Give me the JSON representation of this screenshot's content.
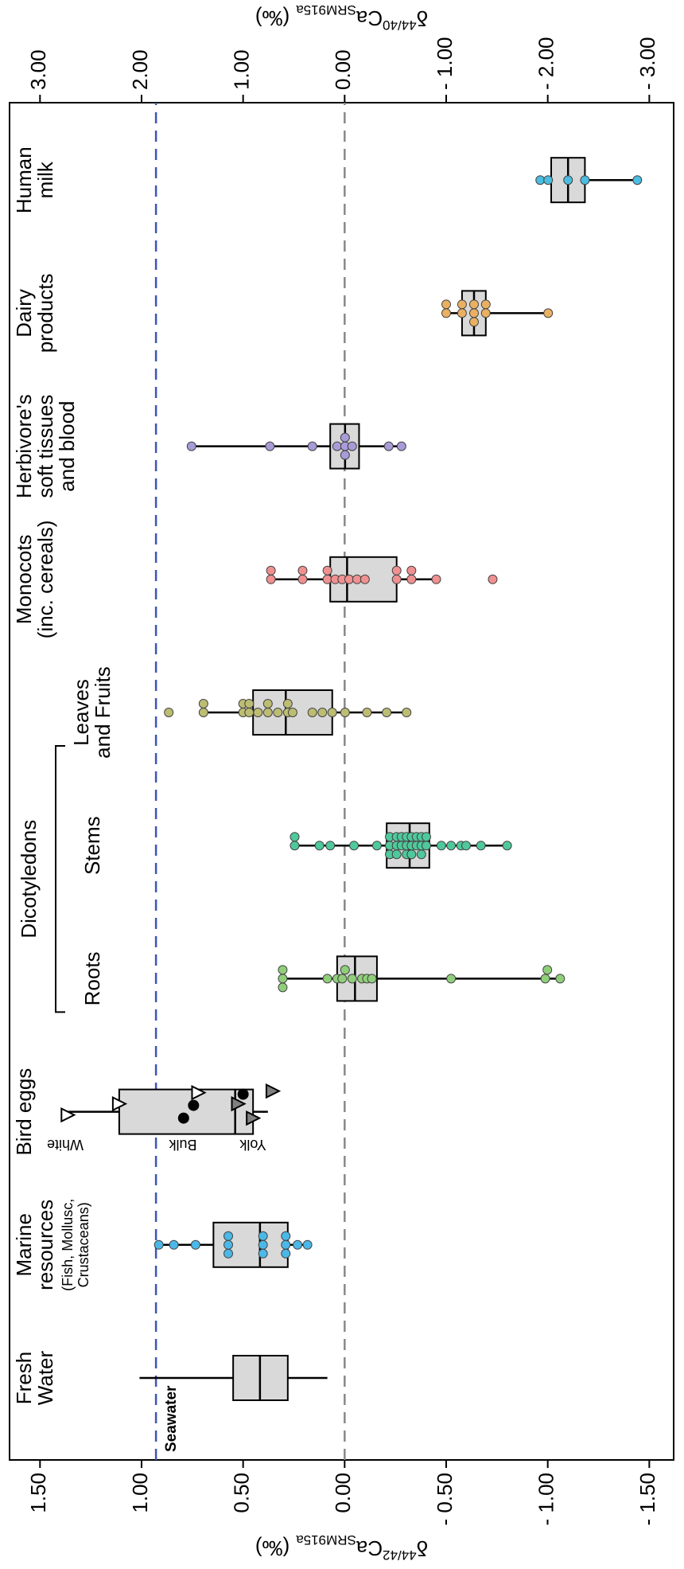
{
  "chart_data": {
    "type": "box",
    "categories": [
      [
        "Fresh",
        "Water"
      ],
      [
        "Marine",
        "resources"
      ],
      [
        "Bird eggs"
      ],
      [
        "Roots"
      ],
      [
        "Stems"
      ],
      [
        "Leaves",
        "and Fruits"
      ],
      [
        "Monocots",
        "(inc. cereals)"
      ],
      [
        "Herbivore's",
        "soft tissues",
        "and blood"
      ],
      [
        "Dairy",
        "products"
      ],
      [
        "Human",
        "milk"
      ]
    ],
    "category_note": [
      "(Fish, Mollusc,",
      "Crustaceans)"
    ],
    "group_label": "Dicotyledons",
    "boxes": [
      {
        "whislo": 0.085,
        "q1": 0.28,
        "median": 0.417,
        "q3": 0.549,
        "whishi": 1.01,
        "points": []
      },
      {
        "whislo": 0.183,
        "q1": 0.28,
        "median": 0.417,
        "q3": 0.646,
        "whishi": 0.915,
        "color": "#4bb8e8",
        "points": [
          0.915,
          0.841,
          0.734,
          0.573,
          0.573,
          0.573,
          0.402,
          0.402,
          0.402,
          0.29,
          0.29,
          0.29,
          0.232,
          0.183
        ]
      },
      {
        "whislo": 0.378,
        "q1": 0.451,
        "median": 0.539,
        "q3": 1.11,
        "whishi": 1.363,
        "points": []
      },
      {
        "whislo": -1.061,
        "q1": -0.159,
        "median": -0.051,
        "q3": 0.037,
        "whishi": 0.305,
        "color": "#8fcf7a",
        "points": [
          0.305,
          0.305,
          0.305,
          0.085,
          0.037,
          0.012,
          -0.002,
          -0.037,
          -0.085,
          -0.11,
          -0.134,
          -0.524,
          -0.988,
          -0.998,
          -1.061
        ]
      },
      {
        "whislo": -0.8,
        "q1": -0.417,
        "median": -0.32,
        "q3": -0.207,
        "whishi": 0.246,
        "color": "#4fc99b",
        "points": [
          0.246,
          0.246,
          0.124,
          0.071,
          -0.046,
          -0.159,
          -0.222,
          -0.222,
          -0.222,
          -0.256,
          -0.256,
          -0.256,
          -0.28,
          -0.28,
          -0.305,
          -0.305,
          -0.305,
          -0.329,
          -0.329,
          -0.329,
          -0.354,
          -0.354,
          -0.378,
          -0.378,
          -0.378,
          -0.402,
          -0.402,
          -0.476,
          -0.524,
          -0.573,
          -0.598,
          -0.671,
          -0.8
        ]
      },
      {
        "whislo": -0.305,
        "q1": 0.061,
        "median": 0.29,
        "q3": 0.451,
        "whishi": 0.695,
        "color": "#bcbd72",
        "points": [
          0.866,
          0.695,
          0.695,
          0.5,
          0.5,
          0.47,
          0.47,
          0.427,
          0.378,
          0.378,
          0.329,
          0.28,
          0.28,
          0.256,
          0.159,
          0.11,
          0.061,
          -0.002,
          -0.11,
          -0.207,
          -0.305
        ]
      },
      {
        "whislo": -0.451,
        "q1": -0.256,
        "median": -0.012,
        "q3": 0.071,
        "whishi": 0.363,
        "color": "#f09090",
        "points": [
          0.363,
          0.363,
          0.207,
          0.207,
          0.085,
          0.085,
          0.046,
          0.012,
          -0.022,
          -0.061,
          -0.1,
          -0.256,
          -0.256,
          -0.329,
          -0.329,
          -0.451,
          -0.729
        ]
      },
      {
        "whislo": -0.28,
        "q1": -0.071,
        "median": -0.002,
        "q3": 0.071,
        "whishi": 0.754,
        "color": "#a99bd8",
        "points": [
          0.754,
          0.368,
          0.159,
          0.037,
          -0.002,
          -0.002,
          -0.002,
          -0.037,
          -0.217,
          -0.28
        ]
      },
      {
        "whislo": -1.002,
        "q1": -0.695,
        "median": -0.637,
        "q3": -0.578,
        "whishi": -0.5,
        "color": "#eab062",
        "points": [
          -0.5,
          -0.5,
          -0.578,
          -0.578,
          -0.637,
          -0.637,
          -0.637,
          -0.695,
          -0.695,
          -1.002
        ]
      },
      {
        "whislo": -1.441,
        "q1": -1.183,
        "median": -1.1,
        "q3": -1.017,
        "whishi": -0.963,
        "color": "#4bbde0",
        "points": [
          -0.963,
          -1.002,
          -1.1,
          -1.183,
          -1.441
        ]
      }
    ],
    "bird_egg_groups": [
      {
        "name": "White",
        "marker": "open-triangle",
        "values": [
          1.363,
          1.11,
          0.72
        ]
      },
      {
        "name": "Bulk",
        "marker": "circle",
        "values": [
          0.793,
          0.744,
          0.5
        ]
      },
      {
        "name": "Yolk",
        "marker": "gray-triangle",
        "values": [
          0.524,
          0.451,
          0.354
        ]
      }
    ],
    "reference_lines": [
      {
        "value": 0,
        "color": "#888888"
      },
      {
        "value": 0.929,
        "color": "#3b57b5",
        "label": "Seawater"
      }
    ],
    "ylabel": {
      "symbol": "δ",
      "sup": "44/42",
      "element": "Ca",
      "sub": "SRM915a",
      "unit": "(‰)"
    },
    "y2label": {
      "symbol": "δ",
      "sup": "44/40",
      "element": "Ca",
      "sub": "SRM915a",
      "unit": "(‰)"
    },
    "ylim": [
      -1.62,
      1.65
    ],
    "yticks": [
      {
        "value": 1.5,
        "label": "1.50"
      },
      {
        "value": 1,
        "label": "1.00"
      },
      {
        "value": 0.5,
        "label": "0.50"
      },
      {
        "value": 0,
        "label": "0.00"
      },
      {
        "value": -0.5,
        "label": "- 0.50"
      },
      {
        "value": -1,
        "label": "- 1.00"
      },
      {
        "value": -1.5,
        "label": "- 1.50"
      }
    ],
    "y2lim": [
      -3.24,
      3.3
    ],
    "y2ticks": [
      {
        "value": 3,
        "label": "3.00"
      },
      {
        "value": 2,
        "label": "2.00"
      },
      {
        "value": 1,
        "label": "1.00"
      },
      {
        "value": 0,
        "label": "0.00"
      },
      {
        "value": -1,
        "label": "- 1.00"
      },
      {
        "value": -2,
        "label": "- 2.00"
      },
      {
        "value": -3,
        "label": "- 3.00"
      }
    ],
    "box_color": "#d9d9d9"
  }
}
